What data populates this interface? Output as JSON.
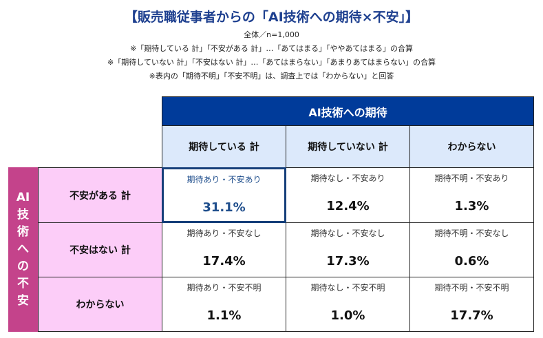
{
  "title": "【販売職従事者からの「AI技術への期待×不安」】",
  "notes": [
    "全体／n=1,000",
    "※「期待している 計」「不安がある 計」…「あてはまる」「ややあてはまる」の合算",
    "※「期待していない 計」「不安はない 計」…「あてはまらない」「あまりあてはまらない」の合算",
    "※表内の「期待不明」「不安不明」は、調査上では「わからない」と回答"
  ],
  "table": {
    "column_group": "AI技術への期待",
    "columns": [
      "期待している 計",
      "期待していない 計",
      "わからない"
    ],
    "row_group": "AI技術への不安",
    "rows": [
      {
        "label": "不安がある 計",
        "cells": [
          {
            "label": "期待あり・不安あり",
            "value": "31.1%"
          },
          {
            "label": "期待なし・不安あり",
            "value": "12.4%"
          },
          {
            "label": "期待不明・不安あり",
            "value": "1.3%"
          }
        ]
      },
      {
        "label": "不安はない 計",
        "cells": [
          {
            "label": "期待あり・不安なし",
            "value": "17.4%"
          },
          {
            "label": "期待なし・不安なし",
            "value": "17.3%"
          },
          {
            "label": "期待不明・不安なし",
            "value": "0.6%"
          }
        ]
      },
      {
        "label": "わからない",
        "cells": [
          {
            "label": "期待あり・不安不明",
            "value": "1.1%"
          },
          {
            "label": "期待なし・不安不明",
            "value": "1.0%"
          },
          {
            "label": "期待不明・不安不明",
            "value": "17.7%"
          }
        ]
      }
    ],
    "highlighted_cell": "期待あり・不安あり"
  },
  "colors": {
    "title": "#1d3f8f",
    "header": "#003b9a",
    "subheader": "#dce9fb",
    "side": "#c4438b",
    "row_label": "#fccdf8",
    "highlight": "#163f7a"
  }
}
